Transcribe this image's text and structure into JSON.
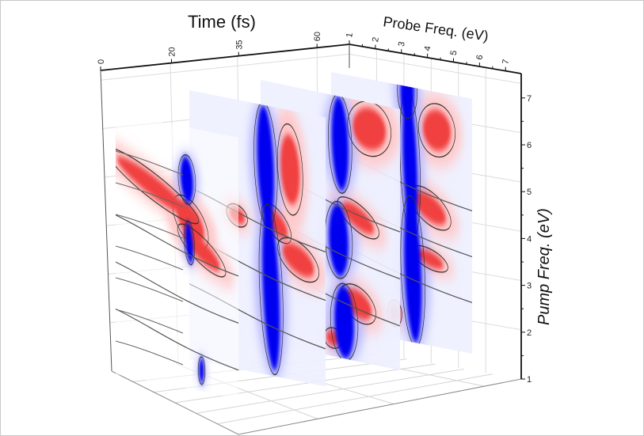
{
  "chart_data": {
    "type": "heatmap",
    "projection": "3d-slices",
    "slice_count": 4,
    "contour_lines": true,
    "colormap": {
      "negative": "#0000ff",
      "zero": "#ffffff",
      "positive": "#ff0000",
      "contour": "#333333"
    },
    "axes": {
      "time": {
        "label": "Time (fs)",
        "ticks": [
          "0",
          "20",
          "35",
          "60"
        ]
      },
      "probe": {
        "label": "Probe Freq. (eV)",
        "ticks": [
          "1",
          "2",
          "3",
          "4",
          "5",
          "6",
          "7"
        ],
        "range": [
          1,
          7
        ]
      },
      "pump": {
        "label": "Pump Freq. (eV)",
        "ticks": [
          "1",
          "2",
          "3",
          "4",
          "5",
          "6",
          "7"
        ],
        "range": [
          1,
          7
        ]
      }
    },
    "grid": true
  }
}
